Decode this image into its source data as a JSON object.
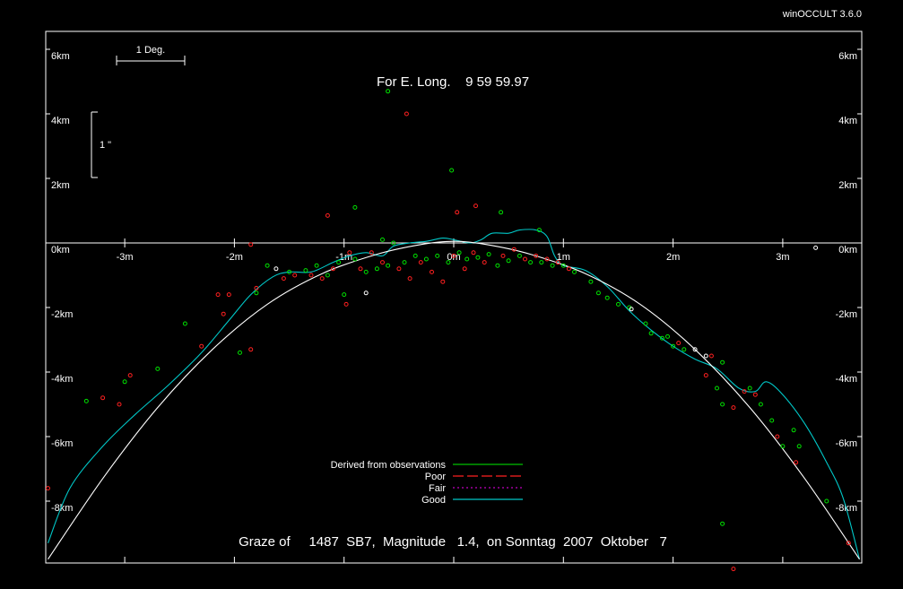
{
  "app_label": "winOCCULT 3.6.0",
  "header": "For E. Long.    9 59 59.97",
  "footer": "Graze of     1487  SB7,  Magnitude   1.4,  on Sonntag  2007  Oktober   7",
  "scale_deg_label": "1 Deg.",
  "scale_arcsec_label": "1 \"",
  "colors": {
    "background": "#000000",
    "frame": "#ffffff",
    "observed_good": "#00e000",
    "observed_poor": "#ff2020",
    "observed_white": "#ffffff",
    "derived": "#00c000",
    "poor_line": "#ff2020",
    "fair_line": "#c000c0",
    "good_line": "#00c8c8",
    "limb_line": "#ffffff"
  },
  "chart_data": {
    "type": "scatter",
    "xlim": [
      -3.7,
      3.7
    ],
    "ylim": [
      -9.8,
      6.6
    ],
    "x_unit": "m",
    "y_unit": "km",
    "x_ticks": [
      {
        "v": -3,
        "label": "-3m"
      },
      {
        "v": -2,
        "label": "-2m"
      },
      {
        "v": -1,
        "label": "-1m"
      },
      {
        "v": 0,
        "label": "0m"
      },
      {
        "v": 1,
        "label": "1m"
      },
      {
        "v": 2,
        "label": "2m"
      },
      {
        "v": 3,
        "label": "3m"
      }
    ],
    "y_ticks": [
      {
        "v": 6,
        "label": "6km"
      },
      {
        "v": 4,
        "label": "4km"
      },
      {
        "v": 2,
        "label": "2km"
      },
      {
        "v": 0,
        "label": "0km"
      },
      {
        "v": -2,
        "label": "-2km"
      },
      {
        "v": -4,
        "label": "-4km"
      },
      {
        "v": -6,
        "label": "-6km"
      },
      {
        "v": -8,
        "label": "-8km"
      }
    ],
    "legend": {
      "placement": "bottom-center",
      "entries": [
        {
          "label": "Derived from observations",
          "style": "solid",
          "color": "#00c000"
        },
        {
          "label": "Poor",
          "style": "dash",
          "color": "#ff2020"
        },
        {
          "label": "Fair",
          "style": "dot",
          "color": "#c000c0"
        },
        {
          "label": "Good",
          "style": "solid",
          "color": "#00c8c8"
        }
      ]
    },
    "curves": [
      {
        "name": "Good",
        "color": "#00c8c8",
        "points": [
          [
            -3.7,
            -9.3
          ],
          [
            -3.5,
            -7.6
          ],
          [
            -3.2,
            -6.3
          ],
          [
            -2.9,
            -5.3
          ],
          [
            -2.6,
            -4.4
          ],
          [
            -2.3,
            -3.4
          ],
          [
            -2.05,
            -2.4
          ],
          [
            -1.85,
            -1.6
          ],
          [
            -1.65,
            -1.05
          ],
          [
            -1.5,
            -0.9
          ],
          [
            -1.3,
            -0.9
          ],
          [
            -1.1,
            -0.6
          ],
          [
            -0.95,
            -0.4
          ],
          [
            -0.8,
            -0.3
          ],
          [
            -0.65,
            -0.4
          ],
          [
            -0.55,
            -0.1
          ],
          [
            -0.4,
            0
          ],
          [
            -0.25,
            0.05
          ],
          [
            -0.1,
            0.15
          ],
          [
            0,
            0.1
          ],
          [
            0.15,
            0
          ],
          [
            0.25,
            0.1
          ],
          [
            0.35,
            0.3
          ],
          [
            0.5,
            0.3
          ],
          [
            0.6,
            0.4
          ],
          [
            0.75,
            0.4
          ],
          [
            0.85,
            0.2
          ],
          [
            0.92,
            -0.4
          ],
          [
            1.0,
            -0.7
          ],
          [
            1.2,
            -0.85
          ],
          [
            1.4,
            -1.35
          ],
          [
            1.6,
            -2.1
          ],
          [
            1.8,
            -2.7
          ],
          [
            2.0,
            -3.2
          ],
          [
            2.2,
            -3.6
          ],
          [
            2.4,
            -3.9
          ],
          [
            2.6,
            -4.5
          ],
          [
            2.75,
            -4.6
          ],
          [
            2.85,
            -4.3
          ],
          [
            3.0,
            -4.7
          ],
          [
            3.2,
            -5.6
          ],
          [
            3.4,
            -6.8
          ],
          [
            3.55,
            -7.9
          ],
          [
            3.7,
            -9.8
          ]
        ]
      },
      {
        "name": "Limb profile",
        "color": "#ffffff",
        "points": [
          [
            -3.7,
            -9.8
          ],
          [
            -3.2,
            -7.3
          ],
          [
            -2.7,
            -5.1
          ],
          [
            -2.2,
            -3.3
          ],
          [
            -1.7,
            -1.9
          ],
          [
            -1.2,
            -0.95
          ],
          [
            -0.7,
            -0.35
          ],
          [
            -0.3,
            -0.05
          ],
          [
            0,
            0.05
          ],
          [
            0.3,
            -0.05
          ],
          [
            0.7,
            -0.35
          ],
          [
            1.2,
            -0.95
          ],
          [
            1.7,
            -1.9
          ],
          [
            2.2,
            -3.3
          ],
          [
            2.7,
            -5.1
          ],
          [
            3.2,
            -7.3
          ],
          [
            3.7,
            -9.8
          ]
        ]
      }
    ],
    "observations": [
      {
        "q": "poor",
        "x": -3.7,
        "y": -7.6
      },
      {
        "q": "good",
        "x": -3.35,
        "y": -4.9
      },
      {
        "q": "poor",
        "x": -3.2,
        "y": -4.8
      },
      {
        "q": "poor",
        "x": -3.05,
        "y": -5.0
      },
      {
        "q": "good",
        "x": -3.0,
        "y": -4.3
      },
      {
        "q": "poor",
        "x": -2.95,
        "y": -4.1
      },
      {
        "q": "good",
        "x": -2.7,
        "y": -3.9
      },
      {
        "q": "good",
        "x": -2.45,
        "y": -2.5
      },
      {
        "q": "poor",
        "x": -2.3,
        "y": -3.2
      },
      {
        "q": "poor",
        "x": -2.1,
        "y": -2.2
      },
      {
        "q": "poor",
        "x": -2.05,
        "y": -1.6
      },
      {
        "q": "poor",
        "x": -2.15,
        "y": -1.6
      },
      {
        "q": "good",
        "x": -1.95,
        "y": -3.4
      },
      {
        "q": "poor",
        "x": -1.85,
        "y": -3.3
      },
      {
        "q": "good",
        "x": -1.8,
        "y": -1.55
      },
      {
        "q": "poor",
        "x": -1.8,
        "y": -1.4
      },
      {
        "q": "good",
        "x": -1.7,
        "y": -0.7
      },
      {
        "q": "poor",
        "x": -1.85,
        "y": -0.05
      },
      {
        "q": "poor",
        "x": -1.55,
        "y": -1.1
      },
      {
        "q": "white",
        "x": -1.62,
        "y": -0.8
      },
      {
        "q": "good",
        "x": -1.5,
        "y": -0.9
      },
      {
        "q": "poor",
        "x": -1.45,
        "y": -1.0
      },
      {
        "q": "good",
        "x": -1.35,
        "y": -0.85
      },
      {
        "q": "poor",
        "x": -1.3,
        "y": -1.0
      },
      {
        "q": "good",
        "x": -1.25,
        "y": -0.7
      },
      {
        "q": "poor",
        "x": -1.2,
        "y": -1.1
      },
      {
        "q": "good",
        "x": -1.15,
        "y": -1.0
      },
      {
        "q": "poor",
        "x": -1.1,
        "y": -0.8
      },
      {
        "q": "good",
        "x": -1.05,
        "y": -0.6
      },
      {
        "q": "poor",
        "x": -1.15,
        "y": 0.85
      },
      {
        "q": "good",
        "x": -0.9,
        "y": 1.1
      },
      {
        "q": "poor",
        "x": -0.98,
        "y": -1.9
      },
      {
        "q": "good",
        "x": -1.0,
        "y": -1.6
      },
      {
        "q": "poor",
        "x": -0.95,
        "y": -0.3
      },
      {
        "q": "good",
        "x": -0.9,
        "y": -0.5
      },
      {
        "q": "poor",
        "x": -0.85,
        "y": -0.8
      },
      {
        "q": "good",
        "x": -0.8,
        "y": -0.9
      },
      {
        "q": "poor",
        "x": -0.75,
        "y": -0.3
      },
      {
        "q": "good",
        "x": -0.7,
        "y": -0.8
      },
      {
        "q": "white",
        "x": -0.8,
        "y": -1.55
      },
      {
        "q": "poor",
        "x": -0.65,
        "y": -0.6
      },
      {
        "q": "good",
        "x": -0.6,
        "y": -0.7
      },
      {
        "q": "good",
        "x": -0.55,
        "y": 0.0
      },
      {
        "q": "poor",
        "x": -0.5,
        "y": -0.8
      },
      {
        "q": "good",
        "x": -0.45,
        "y": -0.6
      },
      {
        "q": "poor",
        "x": -0.4,
        "y": -1.1
      },
      {
        "q": "good",
        "x": -0.35,
        "y": -0.4
      },
      {
        "q": "poor",
        "x": -0.3,
        "y": -0.6
      },
      {
        "q": "good",
        "x": -0.25,
        "y": -0.5
      },
      {
        "q": "poor",
        "x": -0.2,
        "y": -0.9
      },
      {
        "q": "good",
        "x": -0.15,
        "y": -0.4
      },
      {
        "q": "poor",
        "x": -0.1,
        "y": -1.2
      },
      {
        "q": "good",
        "x": -0.05,
        "y": -0.6
      },
      {
        "q": "poor",
        "x": 0.0,
        "y": -0.4
      },
      {
        "q": "good",
        "x": 0.05,
        "y": -0.3
      },
      {
        "q": "poor",
        "x": 0.1,
        "y": -0.8
      },
      {
        "q": "good",
        "x": 0.12,
        "y": -0.5
      },
      {
        "q": "poor",
        "x": 0.18,
        "y": -0.3
      },
      {
        "q": "good",
        "x": 0.22,
        "y": -0.45
      },
      {
        "q": "poor",
        "x": 0.28,
        "y": -0.6
      },
      {
        "q": "good",
        "x": 0.32,
        "y": -0.35
      },
      {
        "q": "good",
        "x": 0.4,
        "y": -0.7
      },
      {
        "q": "poor",
        "x": 0.45,
        "y": -0.4
      },
      {
        "q": "good",
        "x": 0.5,
        "y": -0.55
      },
      {
        "q": "poor",
        "x": 0.55,
        "y": -0.2
      },
      {
        "q": "good",
        "x": 0.6,
        "y": -0.4
      },
      {
        "q": "poor",
        "x": 0.65,
        "y": -0.5
      },
      {
        "q": "good",
        "x": 0.7,
        "y": -0.6
      },
      {
        "q": "poor",
        "x": 0.75,
        "y": -0.4
      },
      {
        "q": "good",
        "x": 0.8,
        "y": -0.6
      },
      {
        "q": "poor",
        "x": 0.85,
        "y": -0.5
      },
      {
        "q": "good",
        "x": 0.9,
        "y": -0.7
      },
      {
        "q": "poor",
        "x": 0.95,
        "y": -0.6
      },
      {
        "q": "good",
        "x": 1.0,
        "y": -0.7
      },
      {
        "q": "poor",
        "x": 1.05,
        "y": -0.8
      },
      {
        "q": "good",
        "x": 1.1,
        "y": -0.9
      },
      {
        "q": "good",
        "x": 1.25,
        "y": -1.2
      },
      {
        "q": "good",
        "x": 1.32,
        "y": -1.55
      },
      {
        "q": "good",
        "x": 1.4,
        "y": -1.7
      },
      {
        "q": "good",
        "x": 1.5,
        "y": -1.9
      },
      {
        "q": "good",
        "x": 1.6,
        "y": -2.0
      },
      {
        "q": "white",
        "x": 1.62,
        "y": -2.05
      },
      {
        "q": "good",
        "x": 1.75,
        "y": -2.5
      },
      {
        "q": "good",
        "x": 1.8,
        "y": -2.8
      },
      {
        "q": "good",
        "x": 1.9,
        "y": -2.95
      },
      {
        "q": "good",
        "x": 1.95,
        "y": -2.9
      },
      {
        "q": "good",
        "x": 2.0,
        "y": -3.2
      },
      {
        "q": "poor",
        "x": 2.05,
        "y": -3.1
      },
      {
        "q": "good",
        "x": 2.1,
        "y": -3.3
      },
      {
        "q": "white",
        "x": 2.2,
        "y": -3.3
      },
      {
        "q": "poor",
        "x": 2.35,
        "y": -3.5
      },
      {
        "q": "good",
        "x": 2.45,
        "y": -3.7
      },
      {
        "q": "poor",
        "x": 2.3,
        "y": -4.1
      },
      {
        "q": "white",
        "x": 2.3,
        "y": -3.5
      },
      {
        "q": "good",
        "x": 2.4,
        "y": -4.5
      },
      {
        "q": "poor",
        "x": 2.55,
        "y": -5.1
      },
      {
        "q": "good",
        "x": 2.45,
        "y": -5.0
      },
      {
        "q": "poor",
        "x": 2.65,
        "y": -4.6
      },
      {
        "q": "good",
        "x": 2.7,
        "y": -4.5
      },
      {
        "q": "poor",
        "x": 2.75,
        "y": -4.7
      },
      {
        "q": "good",
        "x": 2.8,
        "y": -5.0
      },
      {
        "q": "good",
        "x": 2.9,
        "y": -5.5
      },
      {
        "q": "poor",
        "x": 2.95,
        "y": -6.0
      },
      {
        "q": "good",
        "x": 3.0,
        "y": -6.3
      },
      {
        "q": "good",
        "x": 3.1,
        "y": -5.8
      },
      {
        "q": "good",
        "x": 3.15,
        "y": -6.3
      },
      {
        "q": "poor",
        "x": 3.12,
        "y": -6.8
      },
      {
        "q": "good",
        "x": 3.4,
        "y": -8.0
      },
      {
        "q": "poor",
        "x": 3.6,
        "y": -9.3
      },
      {
        "q": "good",
        "x": 2.45,
        "y": -8.7
      },
      {
        "q": "poor",
        "x": 2.55,
        "y": -10.1
      },
      {
        "q": "white",
        "x": 3.3,
        "y": -0.15
      },
      {
        "q": "good",
        "x": -0.6,
        "y": 4.7
      },
      {
        "q": "poor",
        "x": -0.43,
        "y": 4.0
      },
      {
        "q": "good",
        "x": -0.02,
        "y": 2.25
      },
      {
        "q": "poor",
        "x": 0.03,
        "y": 0.95
      },
      {
        "q": "poor",
        "x": 0.2,
        "y": 1.15
      },
      {
        "q": "good",
        "x": 0.43,
        "y": 0.95
      },
      {
        "q": "good",
        "x": 0.78,
        "y": 0.4
      },
      {
        "q": "good",
        "x": -0.65,
        "y": 0.1
      }
    ]
  }
}
